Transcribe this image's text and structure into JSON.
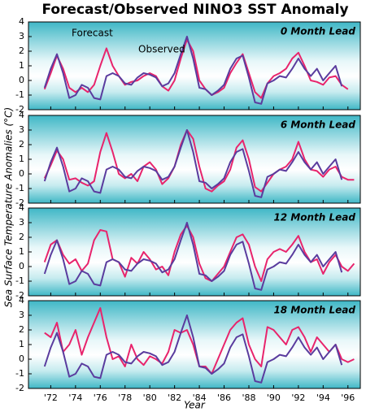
{
  "title": "Forecast/Observed NINO3 SST Anomaly",
  "ylabel": "Sea Surface Temperature Anomalies (°C)",
  "xlabel": "Year",
  "chart_data": [
    {
      "type": "line",
      "label": "0 Month Lead",
      "x": [
        1971.5,
        1972,
        1972.5,
        1973,
        1973.5,
        1974,
        1974.5,
        1975,
        1975.5,
        1976,
        1976.5,
        1977,
        1977.5,
        1978,
        1978.5,
        1979,
        1979.5,
        1980,
        1980.5,
        1981,
        1981.5,
        1982,
        1982.5,
        1983,
        1983.5,
        1984,
        1984.5,
        1985,
        1985.5,
        1986,
        1986.5,
        1987,
        1987.5,
        1988,
        1988.5,
        1989,
        1989.5,
        1990,
        1990.5,
        1991,
        1991.5,
        1992,
        1992.5,
        1993,
        1993.5,
        1994,
        1994.5,
        1995,
        1995.5,
        1996,
        1996.5
      ],
      "xlim": [
        1970.2,
        1997
      ],
      "ylim": [
        -2,
        4
      ],
      "yticks": [
        -2,
        -1,
        0,
        1,
        2,
        3,
        4
      ],
      "series": [
        {
          "name": "Forecast",
          "color": "#e8246c",
          "values": [
            -0.6,
            0.5,
            1.7,
            0.8,
            -0.5,
            -0.8,
            -0.5,
            -0.8,
            -0.3,
            1.0,
            2.2,
            1.0,
            0.3,
            -0.3,
            -0.1,
            0.0,
            0.3,
            0.5,
            0.3,
            -0.4,
            -0.7,
            0.0,
            1.5,
            2.8,
            2.0,
            0.0,
            -0.6,
            -1.0,
            -0.8,
            -0.5,
            0.5,
            1.2,
            1.8,
            0.5,
            -0.8,
            -1.2,
            -0.2,
            0.3,
            0.5,
            0.8,
            1.5,
            1.9,
            1.0,
            0.0,
            -0.1,
            -0.3,
            0.2,
            0.3,
            -0.3,
            -0.6,
            null
          ]
        },
        {
          "name": "Observed",
          "color": "#5a3c9e",
          "values": [
            -0.5,
            0.8,
            1.8,
            0.5,
            -1.2,
            -1.0,
            -0.3,
            -0.5,
            -1.2,
            -1.3,
            0.3,
            0.5,
            0.3,
            -0.2,
            -0.3,
            0.2,
            0.5,
            0.4,
            0.2,
            -0.4,
            -0.2,
            0.5,
            1.8,
            3.0,
            1.5,
            -0.5,
            -0.6,
            -1.0,
            -0.7,
            -0.3,
            0.8,
            1.5,
            1.7,
            0.2,
            -1.5,
            -1.6,
            -0.2,
            0.0,
            0.3,
            0.2,
            0.8,
            1.5,
            0.8,
            0.3,
            0.8,
            0.0,
            0.5,
            1.0,
            -0.4,
            null,
            null
          ]
        }
      ]
    },
    {
      "type": "line",
      "label": "6 Month Lead",
      "x": [
        1971.5,
        1972,
        1972.5,
        1973,
        1973.5,
        1974,
        1974.5,
        1975,
        1975.5,
        1976,
        1976.5,
        1977,
        1977.5,
        1978,
        1978.5,
        1979,
        1979.5,
        1980,
        1980.5,
        1981,
        1981.5,
        1982,
        1982.5,
        1983,
        1983.5,
        1984,
        1984.5,
        1985,
        1985.5,
        1986,
        1986.5,
        1987,
        1987.5,
        1988,
        1988.5,
        1989,
        1989.5,
        1990,
        1990.5,
        1991,
        1991.5,
        1992,
        1992.5,
        1993,
        1993.5,
        1994,
        1994.5,
        1995,
        1995.5,
        1996,
        1996.5
      ],
      "xlim": [
        1970.2,
        1997
      ],
      "ylim": [
        -2,
        4
      ],
      "yticks": [
        -2,
        -1,
        0,
        1,
        2,
        3,
        4
      ],
      "series": [
        {
          "color": "#e8246c",
          "values": [
            -0.3,
            0.6,
            1.6,
            1.0,
            -0.4,
            -0.3,
            -0.6,
            -0.8,
            -0.5,
            1.5,
            2.8,
            1.5,
            0.0,
            -0.3,
            0.0,
            -0.5,
            0.5,
            0.8,
            0.3,
            -0.7,
            -0.3,
            0.5,
            2.0,
            3.0,
            2.4,
            0.5,
            -1.0,
            -1.2,
            -0.8,
            -0.5,
            0.3,
            1.8,
            2.3,
            1.0,
            -0.9,
            -1.2,
            -0.6,
            0.0,
            0.3,
            0.5,
            1.0,
            2.2,
            1.0,
            0.3,
            0.2,
            -0.2,
            0.3,
            0.5,
            -0.2,
            -0.4,
            -0.4
          ]
        },
        {
          "color": "#5a3c9e",
          "values": [
            -0.5,
            0.8,
            1.8,
            0.5,
            -1.2,
            -1.0,
            -0.3,
            -0.5,
            -1.2,
            -1.3,
            0.3,
            0.5,
            0.3,
            -0.2,
            -0.3,
            0.2,
            0.5,
            0.4,
            0.2,
            -0.4,
            -0.2,
            0.5,
            1.8,
            3.0,
            1.5,
            -0.5,
            -0.6,
            -1.0,
            -0.7,
            -0.3,
            0.8,
            1.5,
            1.7,
            0.2,
            -1.5,
            -1.6,
            -0.2,
            0.0,
            0.3,
            0.2,
            0.8,
            1.5,
            0.8,
            0.3,
            0.8,
            0.0,
            0.5,
            1.0,
            -0.4,
            null,
            null
          ]
        }
      ]
    },
    {
      "type": "line",
      "label": "12 Month Lead",
      "x": [
        1971.5,
        1972,
        1972.5,
        1973,
        1973.5,
        1974,
        1974.5,
        1975,
        1975.5,
        1976,
        1976.5,
        1977,
        1977.5,
        1978,
        1978.5,
        1979,
        1979.5,
        1980,
        1980.5,
        1981,
        1981.5,
        1982,
        1982.5,
        1983,
        1983.5,
        1984,
        1984.5,
        1985,
        1985.5,
        1986,
        1986.5,
        1987,
        1987.5,
        1988,
        1988.5,
        1989,
        1989.5,
        1990,
        1990.5,
        1991,
        1991.5,
        1992,
        1992.5,
        1993,
        1993.5,
        1994,
        1994.5,
        1995,
        1995.5,
        1996,
        1996.5
      ],
      "xlim": [
        1970.2,
        1997
      ],
      "ylim": [
        -2,
        4
      ],
      "yticks": [
        -2,
        -1,
        0,
        1,
        2,
        3,
        4
      ],
      "series": [
        {
          "color": "#e8246c",
          "values": [
            0.3,
            1.5,
            1.8,
            0.8,
            0.2,
            0.5,
            -0.3,
            0.2,
            1.8,
            2.5,
            2.4,
            0.5,
            0.3,
            -0.7,
            0.6,
            0.2,
            1.0,
            0.5,
            -0.2,
            0.0,
            -0.6,
            1.0,
            2.2,
            2.8,
            2.0,
            0.2,
            -0.8,
            -1.0,
            -0.5,
            0.0,
            1.0,
            2.0,
            2.2,
            1.5,
            0.0,
            -1.0,
            0.5,
            1.0,
            1.2,
            1.0,
            1.5,
            2.1,
            1.0,
            0.3,
            0.5,
            -0.5,
            0.3,
            0.8,
            0.0,
            -0.3,
            0.2
          ]
        },
        {
          "color": "#5a3c9e",
          "values": [
            -0.5,
            0.8,
            1.8,
            0.5,
            -1.2,
            -1.0,
            -0.3,
            -0.5,
            -1.2,
            -1.3,
            0.3,
            0.5,
            0.3,
            -0.2,
            -0.3,
            0.2,
            0.5,
            0.4,
            0.2,
            -0.4,
            -0.2,
            0.5,
            1.8,
            3.0,
            1.5,
            -0.5,
            -0.6,
            -1.0,
            -0.7,
            -0.3,
            0.8,
            1.5,
            1.7,
            0.2,
            -1.5,
            -1.6,
            -0.2,
            0.0,
            0.3,
            0.2,
            0.8,
            1.5,
            0.8,
            0.3,
            0.8,
            0.0,
            0.5,
            1.0,
            -0.4,
            null,
            null
          ]
        }
      ]
    },
    {
      "type": "line",
      "label": "18 Month Lead",
      "x": [
        1971.5,
        1972,
        1972.5,
        1973,
        1973.5,
        1974,
        1974.5,
        1975,
        1975.5,
        1976,
        1976.5,
        1977,
        1977.5,
        1978,
        1978.5,
        1979,
        1979.5,
        1980,
        1980.5,
        1981,
        1981.5,
        1982,
        1982.5,
        1983,
        1983.5,
        1984,
        1984.5,
        1985,
        1985.5,
        1986,
        1986.5,
        1987,
        1987.5,
        1988,
        1988.5,
        1989,
        1989.5,
        1990,
        1990.5,
        1991,
        1991.5,
        1992,
        1992.5,
        1993,
        1993.5,
        1994,
        1994.5,
        1995,
        1995.5,
        1996,
        1996.5
      ],
      "xlim": [
        1970.2,
        1997
      ],
      "ylim": [
        -2,
        4
      ],
      "yticks": [
        -2,
        -1,
        0,
        1,
        2,
        3,
        4
      ],
      "xticks": [
        {
          "value": 1972,
          "label": "'72"
        },
        {
          "value": 1974,
          "label": "'74"
        },
        {
          "value": 1976,
          "label": "'76"
        },
        {
          "value": 1978,
          "label": "'78"
        },
        {
          "value": 1980,
          "label": "'80"
        },
        {
          "value": 1982,
          "label": "'82"
        },
        {
          "value": 1984,
          "label": "'84"
        },
        {
          "value": 1986,
          "label": "'86"
        },
        {
          "value": 1988,
          "label": "'88"
        },
        {
          "value": 1990,
          "label": "'90"
        },
        {
          "value": 1992,
          "label": "'92"
        },
        {
          "value": 1994,
          "label": "'94"
        },
        {
          "value": 1996,
          "label": "'96"
        }
      ],
      "series": [
        {
          "color": "#e8246c",
          "values": [
            1.8,
            1.5,
            2.5,
            0.5,
            1.0,
            2.0,
            0.3,
            1.5,
            2.5,
            3.5,
            1.5,
            0.0,
            0.2,
            -0.5,
            1.0,
            0.0,
            -0.4,
            0.2,
            0.0,
            -0.3,
            0.5,
            2.0,
            1.8,
            2.0,
            1.0,
            -0.5,
            -0.5,
            -1.0,
            0.0,
            1.0,
            2.0,
            2.5,
            2.8,
            1.0,
            0.0,
            -0.5,
            2.2,
            2.0,
            1.5,
            1.0,
            2.0,
            2.2,
            1.5,
            0.5,
            1.5,
            1.0,
            0.5,
            1.0,
            0.0,
            -0.2,
            0.0
          ]
        },
        {
          "color": "#5a3c9e",
          "values": [
            -0.5,
            0.8,
            1.8,
            0.5,
            -1.2,
            -1.0,
            -0.3,
            -0.5,
            -1.2,
            -1.3,
            0.3,
            0.5,
            0.3,
            -0.2,
            -0.3,
            0.2,
            0.5,
            0.4,
            0.2,
            -0.4,
            -0.2,
            0.5,
            1.8,
            3.0,
            1.5,
            -0.5,
            -0.6,
            -1.0,
            -0.7,
            -0.3,
            0.8,
            1.5,
            1.7,
            0.2,
            -1.5,
            -1.6,
            -0.2,
            0.0,
            0.3,
            0.2,
            0.8,
            1.5,
            0.8,
            0.3,
            0.8,
            0.0,
            0.5,
            1.0,
            -0.4,
            null,
            null
          ]
        }
      ]
    }
  ]
}
